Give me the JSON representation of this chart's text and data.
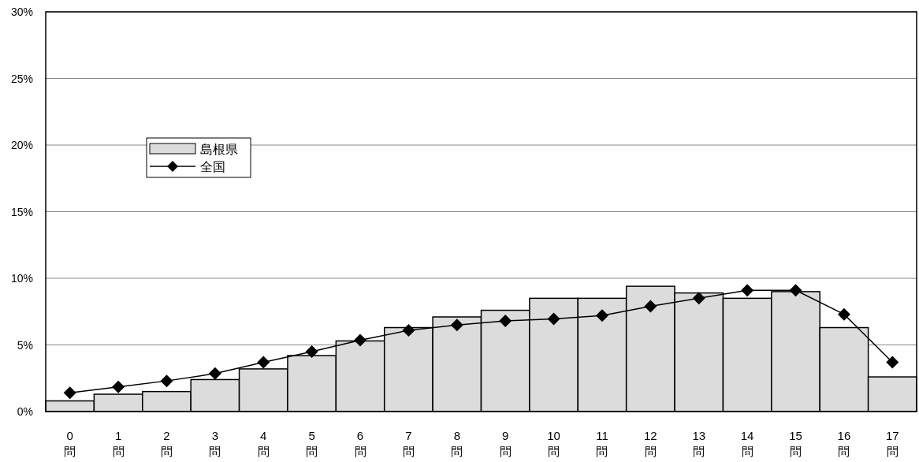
{
  "chart_data": {
    "type": "bar",
    "categories": [
      "0\n問",
      "1\n問",
      "2\n問",
      "3\n問",
      "4\n問",
      "5\n問",
      "6\n問",
      "7\n問",
      "8\n問",
      "9\n問",
      "10\n問",
      "11\n問",
      "12\n問",
      "13\n問",
      "14\n問",
      "15\n問",
      "16\n問",
      "17\n問"
    ],
    "series": [
      {
        "name": "島根県",
        "color": "#dcdcdc",
        "values": [
          0.8,
          1.3,
          1.5,
          2.4,
          3.2,
          4.2,
          5.3,
          6.3,
          7.1,
          7.6,
          8.5,
          8.5,
          9.4,
          8.9,
          8.5,
          9.0,
          6.3,
          2.6
        ]
      },
      {
        "name": "全国",
        "type": "line",
        "color": "#000000",
        "marker": "diamond",
        "values": [
          1.4,
          1.85,
          2.3,
          2.85,
          3.7,
          4.5,
          5.35,
          6.1,
          6.5,
          6.8,
          6.95,
          7.2,
          7.9,
          8.5,
          9.1,
          9.1,
          7.3,
          3.7
        ]
      }
    ],
    "ylim": [
      0,
      30
    ],
    "yticks": [
      {
        "value": 0,
        "label": "0%"
      },
      {
        "value": 5,
        "label": "5%"
      },
      {
        "value": 10,
        "label": "10%"
      },
      {
        "value": 15,
        "label": "15%"
      },
      {
        "value": 20,
        "label": "20%"
      },
      {
        "value": 25,
        "label": "25%"
      },
      {
        "value": 30,
        "label": "30%"
      }
    ],
    "grid": "y",
    "legend": "top left"
  }
}
